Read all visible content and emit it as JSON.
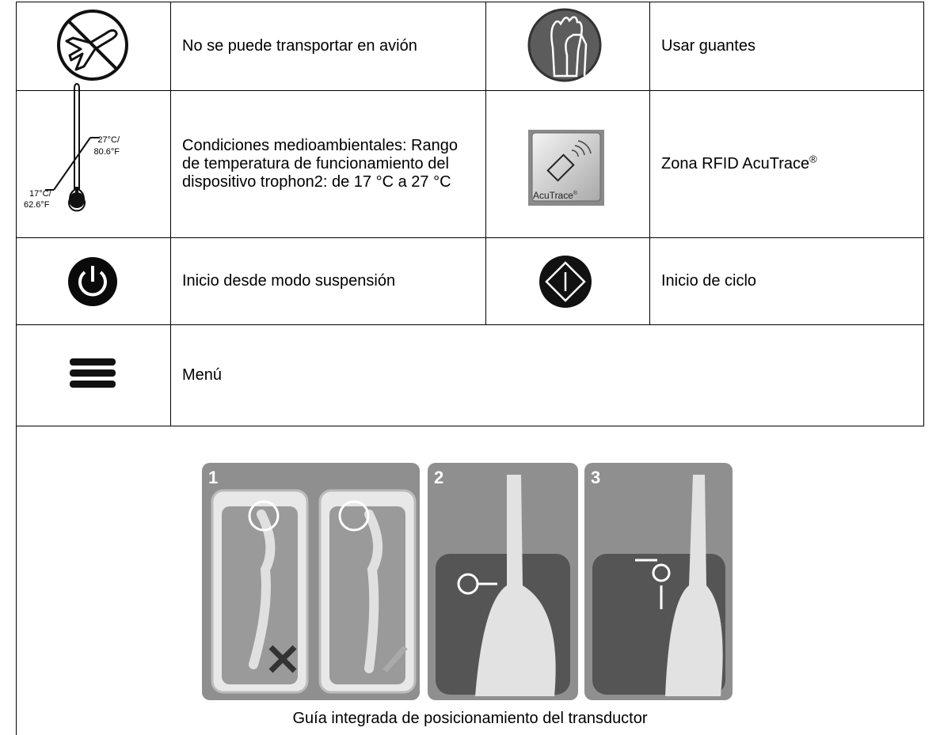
{
  "table": {
    "rows": [
      {
        "left": "No se puede transportar en avión",
        "right": "Usar guantes"
      },
      {
        "left": "Condiciones medioambientales: Rango de temperatura de funcionamiento del dispositivo trophon2: de 17 °C a 27 °C",
        "right": "Zona RFID AcuTrace",
        "right_mark": "®"
      },
      {
        "left": "Inicio desde modo suspensión",
        "right": "Inicio de ciclo"
      },
      {
        "left": "Menú"
      }
    ]
  },
  "thermometer": {
    "high": [
      "27°C/",
      "80.6°F"
    ],
    "low": [
      "17°C/",
      "62.6°F"
    ]
  },
  "acutrace_icon": {
    "label": "AcuTrace",
    "mark": "®"
  },
  "figure": {
    "steps": [
      "1",
      "2",
      "3"
    ],
    "caption": "Guía integrada de posicionamiento del transductor"
  }
}
